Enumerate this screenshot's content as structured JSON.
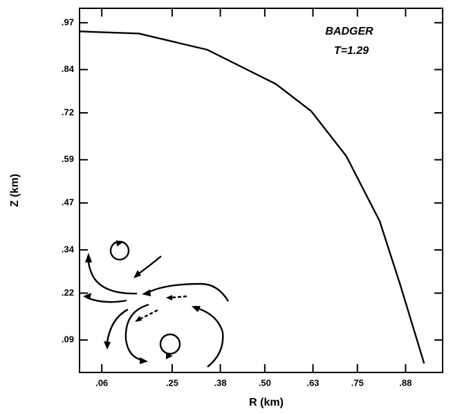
{
  "chart_data": {
    "type": "line",
    "annotations": [
      "BADGER",
      "T=1.29"
    ],
    "x_label": "R (km)",
    "y_label": "Z (km)",
    "x": [
      0,
      0.16,
      0.345,
      0.53,
      0.625,
      0.72,
      0.81,
      0.865,
      0.905,
      0.93
    ],
    "series": [
      {
        "color": "#000000",
        "values": [
          0.946,
          0.94,
          0.895,
          0.8,
          0.725,
          0.6,
          0.42,
          0.245,
          0.11,
          0.025
        ]
      }
    ],
    "xlim": [
      0,
      0.98
    ],
    "ylim": [
      0,
      1.01
    ],
    "xticks": [
      {
        "value": 0.06,
        "label": ".06"
      },
      {
        "value": 0.25,
        "label": ".25"
      },
      {
        "value": 0.38,
        "label": ".38"
      },
      {
        "value": 0.5,
        "label": ".50"
      },
      {
        "value": 0.63,
        "label": ".63"
      },
      {
        "value": 0.75,
        "label": ".75"
      },
      {
        "value": 0.88,
        "label": ".88"
      }
    ],
    "yticks": [
      {
        "value": 0.09,
        "label": ".09"
      },
      {
        "value": 0.22,
        "label": ".22"
      },
      {
        "value": 0.34,
        "label": ".34"
      },
      {
        "value": 0.47,
        "label": ".47"
      },
      {
        "value": 0.59,
        "label": ".59"
      },
      {
        "value": 0.72,
        "label": ".72"
      },
      {
        "value": 0.84,
        "label": ".84"
      },
      {
        "value": 0.97,
        "label": ".97"
      }
    ]
  }
}
